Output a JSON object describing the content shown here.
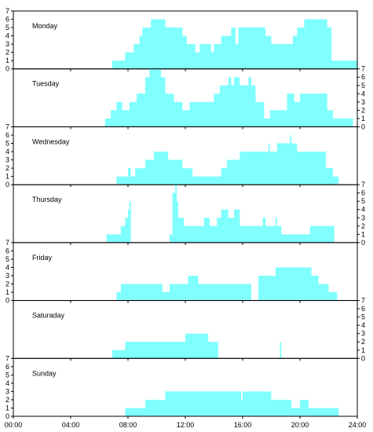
{
  "chart_data": {
    "type": "area",
    "x_unit": "hours",
    "xlim": [
      0,
      24
    ],
    "ylim": [
      0,
      7
    ],
    "x_ticks": [
      {
        "value": 0,
        "label": "00:00"
      },
      {
        "value": 4,
        "label": "04:00"
      },
      {
        "value": 8,
        "label": "08:00"
      },
      {
        "value": 12,
        "label": "12:00"
      },
      {
        "value": 16,
        "label": "16:00"
      },
      {
        "value": 20,
        "label": "20:00"
      },
      {
        "value": 24,
        "label": "24:00"
      }
    ],
    "y_ticks": [
      0,
      1,
      2,
      3,
      4,
      5,
      6,
      7
    ],
    "fill_color": "#80ffff",
    "grid": false,
    "panels": [
      {
        "name": "Monday",
        "y_axis_side": "left",
        "points": [
          [
            6.9,
            1
          ],
          [
            7.8,
            2
          ],
          [
            8.4,
            3
          ],
          [
            8.8,
            4
          ],
          [
            9.0,
            5
          ],
          [
            9.6,
            6
          ],
          [
            10.6,
            5
          ],
          [
            11.0,
            5
          ],
          [
            11.8,
            4
          ],
          [
            12.1,
            3
          ],
          [
            12.7,
            2
          ],
          [
            13.0,
            3
          ],
          [
            13.8,
            2
          ],
          [
            14.0,
            3
          ],
          [
            14.5,
            4
          ],
          [
            15.2,
            5
          ],
          [
            15.5,
            3
          ],
          [
            15.7,
            5
          ],
          [
            17.6,
            4
          ],
          [
            18.0,
            3
          ],
          [
            19.5,
            4
          ],
          [
            19.8,
            5
          ],
          [
            20.3,
            6
          ],
          [
            21.9,
            5
          ],
          [
            22.2,
            1
          ],
          [
            24,
            0
          ]
        ]
      },
      {
        "name": "Tuesday",
        "y_axis_side": "right",
        "points": [
          [
            6.4,
            1
          ],
          [
            6.8,
            2
          ],
          [
            7.2,
            3
          ],
          [
            7.6,
            2
          ],
          [
            8.1,
            3
          ],
          [
            8.6,
            4
          ],
          [
            9.2,
            6
          ],
          [
            9.5,
            7
          ],
          [
            10.3,
            6
          ],
          [
            10.6,
            4
          ],
          [
            11.2,
            3
          ],
          [
            11.8,
            2
          ],
          [
            12.3,
            3
          ],
          [
            14.0,
            4
          ],
          [
            14.4,
            5
          ],
          [
            15.0,
            6
          ],
          [
            15.2,
            5
          ],
          [
            15.4,
            6
          ],
          [
            15.8,
            5
          ],
          [
            16.4,
            6
          ],
          [
            16.6,
            5
          ],
          [
            16.9,
            3
          ],
          [
            17.5,
            1
          ],
          [
            17.9,
            2
          ],
          [
            19.1,
            4
          ],
          [
            19.6,
            3
          ],
          [
            20.0,
            4
          ],
          [
            21.9,
            2
          ],
          [
            22.3,
            1
          ],
          [
            23.7,
            0
          ]
        ]
      },
      {
        "name": "Wednesday",
        "y_axis_side": "left",
        "points": [
          [
            7.2,
            1
          ],
          [
            8.0,
            2
          ],
          [
            8.2,
            1
          ],
          [
            8.5,
            2
          ],
          [
            9.2,
            3
          ],
          [
            9.8,
            4
          ],
          [
            10.8,
            3
          ],
          [
            11.8,
            2
          ],
          [
            12.5,
            1
          ],
          [
            14.5,
            2
          ],
          [
            14.9,
            3
          ],
          [
            15.8,
            4
          ],
          [
            17.8,
            5
          ],
          [
            17.9,
            4
          ],
          [
            18.4,
            5
          ],
          [
            19.3,
            6
          ],
          [
            19.4,
            5
          ],
          [
            19.8,
            4
          ],
          [
            21.8,
            2
          ],
          [
            22.3,
            1
          ],
          [
            22.7,
            0
          ]
        ]
      },
      {
        "name": "Thursday",
        "y_axis_side": "right",
        "points": [
          [
            6.5,
            1
          ],
          [
            7.5,
            2
          ],
          [
            7.8,
            3
          ],
          [
            8.0,
            4
          ],
          [
            8.1,
            5
          ],
          [
            8.2,
            0
          ],
          [
            10.9,
            1
          ],
          [
            11.1,
            6
          ],
          [
            11.3,
            7
          ],
          [
            11.4,
            5
          ],
          [
            11.5,
            3
          ],
          [
            11.9,
            2
          ],
          [
            13.3,
            3
          ],
          [
            13.7,
            2
          ],
          [
            14.2,
            3
          ],
          [
            14.5,
            4
          ],
          [
            15.0,
            3
          ],
          [
            15.4,
            4
          ],
          [
            15.8,
            2
          ],
          [
            17.4,
            3
          ],
          [
            17.6,
            2
          ],
          [
            18.3,
            3
          ],
          [
            18.4,
            2
          ],
          [
            18.7,
            1
          ],
          [
            20.7,
            2
          ],
          [
            22.4,
            0
          ]
        ]
      },
      {
        "name": "Friday",
        "y_axis_side": "left",
        "points": [
          [
            7.2,
            1
          ],
          [
            7.5,
            2
          ],
          [
            10.4,
            1
          ],
          [
            10.9,
            2
          ],
          [
            12.2,
            3
          ],
          [
            12.9,
            2
          ],
          [
            16.6,
            0
          ],
          [
            17.1,
            3
          ],
          [
            18.3,
            4
          ],
          [
            20.8,
            3
          ],
          [
            21.3,
            2
          ],
          [
            22.0,
            1
          ],
          [
            22.6,
            0
          ]
        ]
      },
      {
        "name": "Saturaday",
        "y_axis_side": "right",
        "points": [
          [
            6.9,
            1
          ],
          [
            7.8,
            2
          ],
          [
            12.0,
            3
          ],
          [
            13.6,
            2
          ],
          [
            14.3,
            0
          ],
          [
            18.6,
            2
          ],
          [
            18.7,
            0
          ]
        ]
      },
      {
        "name": "Sunday",
        "y_axis_side": "left",
        "points": [
          [
            7.8,
            1
          ],
          [
            9.2,
            2
          ],
          [
            10.6,
            3
          ],
          [
            15.9,
            2
          ],
          [
            16.0,
            3
          ],
          [
            18.0,
            2
          ],
          [
            19.4,
            1
          ],
          [
            20.0,
            2
          ],
          [
            20.6,
            1
          ],
          [
            22.7,
            0
          ]
        ]
      }
    ]
  }
}
